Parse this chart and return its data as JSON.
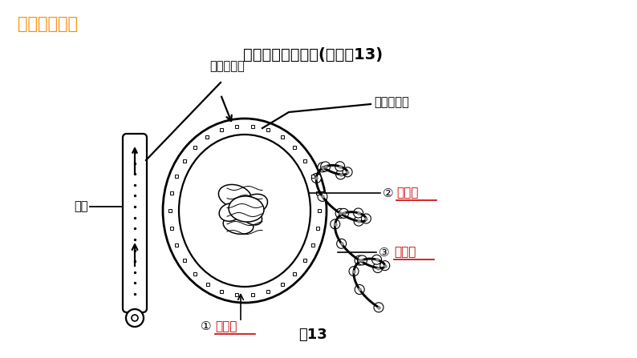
{
  "title": "二、肾单位的组成(完成图13)",
  "header": "期末复习冲刺",
  "header_color": "#FF8C00",
  "title_color": "#000000",
  "red": "#CC0000",
  "black": "#000000",
  "bg_color": "#FFFFFF",
  "caption": "图13",
  "label_ruqiu": "入球小动脉",
  "label_chuqiu": "出球小动脉",
  "label_dongmai": "动脉",
  "label_nang_num": "②",
  "label_nang": "肾小囊",
  "label_guan_num": "③",
  "label_guan": "肾小管",
  "label_qiu_num": "①",
  "label_qiu": "肾小球"
}
